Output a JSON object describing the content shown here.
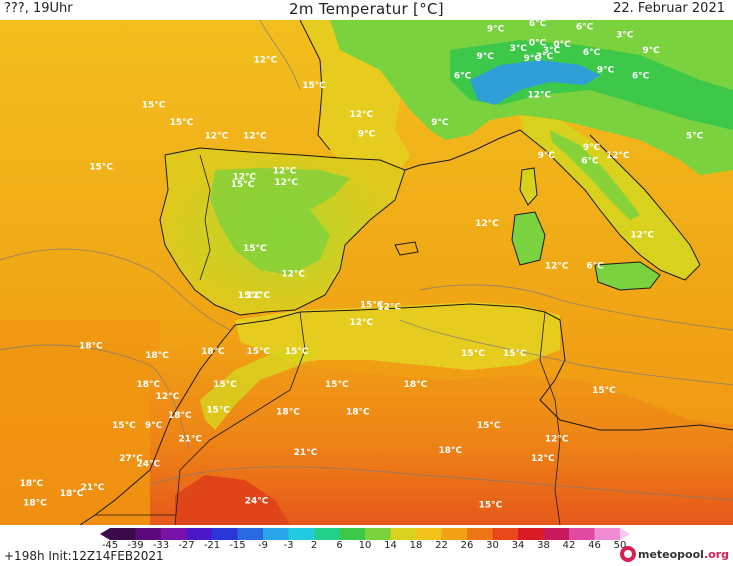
{
  "header": {
    "left": "???, 19Uhr",
    "title": "2m Temperatur [°C]",
    "date": "22. Februar 2021"
  },
  "colors": {
    "sea_mid": "#f0b519",
    "sea_warm": "#f0a114",
    "sea_south": "#f49114",
    "land_cool": "#d8d21e",
    "land_green": "#7ad23e",
    "land_green_dark": "#3ec84a",
    "land_cold": "#2f9fd8",
    "desert_warm": "#ee7616",
    "desert_hot": "#e0451a",
    "coastline": "#1a1a1a",
    "isotherm": "#7a7a7a",
    "label": "#ffffff",
    "brand_accent": "#d6204f"
  },
  "colorbar": {
    "ticks": [
      "-45",
      "-39",
      "-33",
      "-27",
      "-21",
      "-15",
      "-9",
      "-3",
      "2",
      "6",
      "10",
      "14",
      "18",
      "22",
      "26",
      "30",
      "34",
      "38",
      "42",
      "46",
      "50"
    ],
    "stops": [
      "#3b0a4a",
      "#5a0a7a",
      "#7a12a8",
      "#4a18c8",
      "#2a36d8",
      "#2a6ae0",
      "#28a4e8",
      "#22cce0",
      "#22d08c",
      "#3ec84a",
      "#7ad23e",
      "#d8d21e",
      "#f0c21a",
      "#f0a114",
      "#ee7616",
      "#e8481a",
      "#d81c22",
      "#c81a5a",
      "#e04aa0",
      "#f08ad2",
      "#f8c8f0"
    ]
  },
  "temperature_labels": [
    {
      "text": "12°C",
      "lon": -6.8,
      "lat": 44.0
    },
    {
      "text": "9°C",
      "lon": 6.4,
      "lat": 45.6
    },
    {
      "text": "6°C",
      "lon": 8.8,
      "lat": 45.9
    },
    {
      "text": "6°C",
      "lon": 11.5,
      "lat": 45.7
    },
    {
      "text": "3°C",
      "lon": 13.8,
      "lat": 45.3
    },
    {
      "text": "9°C",
      "lon": 5.8,
      "lat": 44.2
    },
    {
      "text": "3°C",
      "lon": 7.7,
      "lat": 44.6
    },
    {
      "text": "0°C",
      "lon": 8.8,
      "lat": 44.9
    },
    {
      "text": "0°C",
      "lon": 10.2,
      "lat": 44.8
    },
    {
      "text": "3°C",
      "lon": 9.6,
      "lat": 44.5
    },
    {
      "text": "6°C",
      "lon": 11.9,
      "lat": 44.4
    },
    {
      "text": "9°C",
      "lon": 15.3,
      "lat": 44.5
    },
    {
      "text": "9°C",
      "lon": 8.5,
      "lat": 44.1
    },
    {
      "text": "3°C",
      "lon": 9.2,
      "lat": 44.2
    },
    {
      "text": "9°C",
      "lon": 12.7,
      "lat": 43.5
    },
    {
      "text": "6°C",
      "lon": 14.7,
      "lat": 43.2
    },
    {
      "text": "6°C",
      "lon": 4.5,
      "lat": 43.2
    },
    {
      "text": "12°C",
      "lon": 8.9,
      "lat": 42.2
    },
    {
      "text": "15°C",
      "lon": -4.0,
      "lat": 42.7
    },
    {
      "text": "15°C",
      "lon": -13.2,
      "lat": 41.7
    },
    {
      "text": "15°C",
      "lon": -11.6,
      "lat": 40.8
    },
    {
      "text": "12°C",
      "lon": -1.3,
      "lat": 41.2
    },
    {
      "text": "9°C",
      "lon": 3.2,
      "lat": 40.8
    },
    {
      "text": "5°C",
      "lon": 17.8,
      "lat": 40.1
    },
    {
      "text": "12°C",
      "lon": -9.6,
      "lat": 40.1
    },
    {
      "text": "12°C",
      "lon": -7.4,
      "lat": 40.1
    },
    {
      "text": "9°C",
      "lon": -1.0,
      "lat": 40.2
    },
    {
      "text": "9°C",
      "lon": 9.3,
      "lat": 39.1
    },
    {
      "text": "9°C",
      "lon": 11.9,
      "lat": 39.5
    },
    {
      "text": "12°C",
      "lon": 13.4,
      "lat": 39.1
    },
    {
      "text": "6°C",
      "lon": 11.8,
      "lat": 38.8
    },
    {
      "text": "15°C",
      "lon": -16.2,
      "lat": 38.5
    },
    {
      "text": "12°C",
      "lon": -5.7,
      "lat": 38.3
    },
    {
      "text": "12°C",
      "lon": -8.0,
      "lat": 38.0
    },
    {
      "text": "15°C",
      "lon": -8.1,
      "lat": 37.6
    },
    {
      "text": "12°C",
      "lon": -5.6,
      "lat": 37.7
    },
    {
      "text": "12°C",
      "lon": 5.9,
      "lat": 35.6
    },
    {
      "text": "12°C",
      "lon": 14.8,
      "lat": 35.0
    },
    {
      "text": "15°C",
      "lon": -7.4,
      "lat": 34.3
    },
    {
      "text": "12°C",
      "lon": -5.2,
      "lat": 33.0
    },
    {
      "text": "12°C",
      "lon": 9.9,
      "lat": 33.4
    },
    {
      "text": "6°C",
      "lon": 12.1,
      "lat": 33.4
    },
    {
      "text": "15°C",
      "lon": -7.7,
      "lat": 31.9
    },
    {
      "text": "12°C",
      "lon": -7.2,
      "lat": 31.9
    },
    {
      "text": "15°C",
      "lon": -0.7,
      "lat": 31.4
    },
    {
      "text": "12°C",
      "lon": 0.3,
      "lat": 31.3
    },
    {
      "text": "12°C",
      "lon": -1.3,
      "lat": 30.5
    },
    {
      "text": "18°C",
      "lon": -16.8,
      "lat": 29.3
    },
    {
      "text": "18°C",
      "lon": -13.0,
      "lat": 28.8
    },
    {
      "text": "18°C",
      "lon": -9.8,
      "lat": 29.0
    },
    {
      "text": "15°C",
      "lon": -7.2,
      "lat": 29.0
    },
    {
      "text": "15°C",
      "lon": -5.0,
      "lat": 29.0
    },
    {
      "text": "15°C",
      "lon": 5.1,
      "lat": 28.9
    },
    {
      "text": "15°C",
      "lon": 7.5,
      "lat": 28.9
    },
    {
      "text": "18°C",
      "lon": -13.5,
      "lat": 27.3
    },
    {
      "text": "15°C",
      "lon": -9.1,
      "lat": 27.3
    },
    {
      "text": "15°C",
      "lon": -2.7,
      "lat": 27.3
    },
    {
      "text": "18°C",
      "lon": 1.8,
      "lat": 27.3
    },
    {
      "text": "15°C",
      "lon": 12.6,
      "lat": 27.0
    },
    {
      "text": "12°C",
      "lon": -12.4,
      "lat": 26.7
    },
    {
      "text": "15°C",
      "lon": -9.5,
      "lat": 26.0
    },
    {
      "text": "18°C",
      "lon": -5.5,
      "lat": 25.9
    },
    {
      "text": "18°C",
      "lon": -1.5,
      "lat": 25.9
    },
    {
      "text": "18°C",
      "lon": -11.7,
      "lat": 25.7
    },
    {
      "text": "15°C",
      "lon": -14.9,
      "lat": 25.2
    },
    {
      "text": "9°C",
      "lon": -13.2,
      "lat": 25.2
    },
    {
      "text": "15°C",
      "lon": 6.0,
      "lat": 25.2
    },
    {
      "text": "21°C",
      "lon": -11.1,
      "lat": 24.5
    },
    {
      "text": "12°C",
      "lon": 9.9,
      "lat": 24.5
    },
    {
      "text": "18°C",
      "lon": 3.8,
      "lat": 23.9
    },
    {
      "text": "21°C",
      "lon": -4.5,
      "lat": 23.8
    },
    {
      "text": "27°C",
      "lon": -14.5,
      "lat": 23.5
    },
    {
      "text": "12°C",
      "lon": 9.1,
      "lat": 23.5
    },
    {
      "text": "24°C",
      "lon": -13.5,
      "lat": 23.2
    },
    {
      "text": "18°C",
      "lon": -20.2,
      "lat": 22.2
    },
    {
      "text": "21°C",
      "lon": -16.7,
      "lat": 22.0
    },
    {
      "text": "18°C",
      "lon": -17.9,
      "lat": 21.7
    },
    {
      "text": "18°C",
      "lon": -20.0,
      "lat": 21.2
    },
    {
      "text": "24°C",
      "lon": -7.3,
      "lat": 21.3
    },
    {
      "text": "15°C",
      "lon": 6.1,
      "lat": 21.1
    }
  ],
  "footer": {
    "run": "+198h Init:12Z14FEB2021",
    "brand_name": "meteopool",
    "brand_tld": ".org"
  }
}
